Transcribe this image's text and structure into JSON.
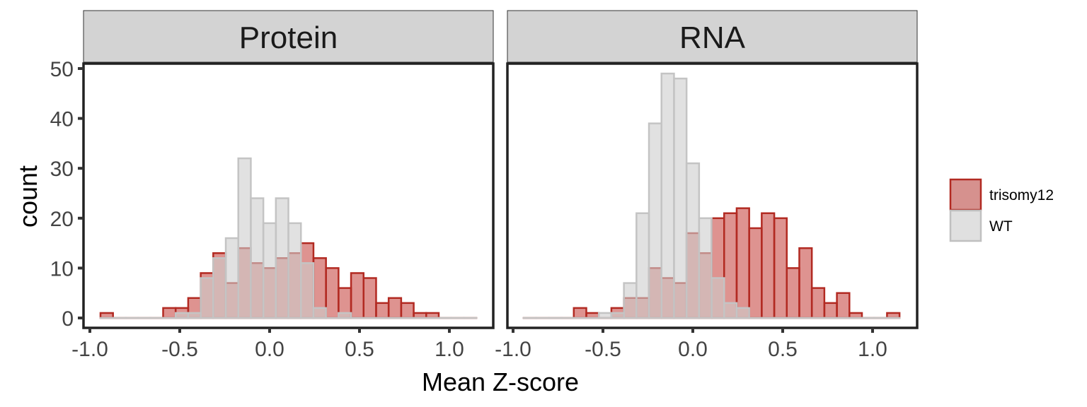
{
  "chart_data": {
    "type": "bar",
    "subtype": "overlaid histogram, faceted",
    "xlabel": "Mean Z-score",
    "ylabel": "count",
    "xlim": [
      -1.03,
      1.24
    ],
    "ylim": [
      -1.8,
      50.8
    ],
    "x_ticks": [
      -1.0,
      -0.5,
      0.0,
      0.5,
      1.0
    ],
    "x_tick_labels": [
      "-1.0",
      "-0.5",
      "0.0",
      "0.5",
      "1.0"
    ],
    "y_ticks": [
      0,
      10,
      20,
      30,
      40,
      50
    ],
    "y_tick_labels": [
      "0",
      "10",
      "20",
      "30",
      "40",
      "50"
    ],
    "bin_start": -0.941,
    "bin_width": 0.0697,
    "grid": false,
    "legend": {
      "placement": "right",
      "entries": [
        {
          "label": "trisomy12",
          "fill": "#d6918e",
          "stroke": "#b22a22"
        },
        {
          "label": "WT",
          "fill": "#e0e0e0",
          "stroke": "#c0c0c0"
        }
      ]
    },
    "panels": [
      {
        "title": "Protein",
        "series": [
          {
            "name": "trisomy12",
            "values": [
              1,
              0,
              0,
              0,
              0,
              2,
              2,
              4,
              9,
              13,
              7,
              14,
              11,
              10,
              12,
              13,
              15,
              12,
              10,
              6,
              9,
              8,
              3,
              4,
              3,
              1,
              1,
              0,
              0,
              0
            ]
          },
          {
            "name": "WT",
            "values": [
              0,
              0,
              0,
              0,
              0,
              0,
              1,
              1,
              8,
              12,
              16,
              32,
              24,
              19,
              24,
              19,
              11,
              2,
              0,
              1,
              0,
              0,
              0,
              0,
              0,
              0,
              0,
              0,
              0,
              0
            ]
          }
        ]
      },
      {
        "title": "RNA",
        "series": [
          {
            "name": "trisomy12",
            "values": [
              0,
              0,
              0,
              0,
              2,
              1,
              0,
              2,
              4,
              4,
              10,
              8,
              7,
              17,
              13,
              20,
              21,
              22,
              18,
              21,
              20,
              10,
              14,
              6,
              3,
              5,
              1,
              0,
              0,
              1
            ]
          },
          {
            "name": "WT",
            "values": [
              0,
              0,
              0,
              0,
              0,
              0,
              1,
              1,
              7,
              21,
              39,
              49,
              48,
              31,
              20,
              8,
              3,
              2,
              0,
              0,
              0,
              0,
              0,
              0,
              0,
              0,
              0,
              0,
              0,
              0
            ]
          }
        ]
      }
    ]
  }
}
